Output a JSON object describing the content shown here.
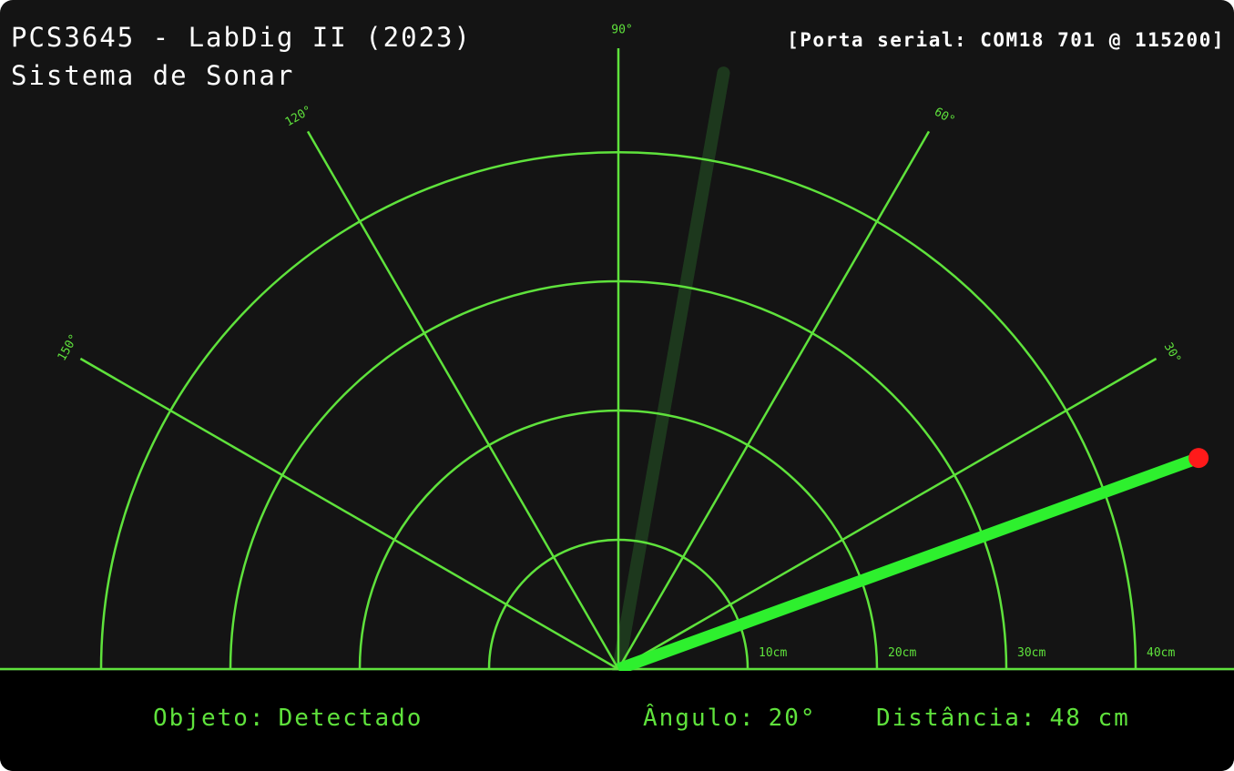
{
  "header": {
    "title": "PCS3645 - LabDig II (2023)",
    "subtitle": "Sistema de Sonar",
    "port_status": "[Porta serial: COM18 701 @ 115200]"
  },
  "radar": {
    "angle_labels": [
      "30°",
      "60°",
      "90°",
      "120°",
      "150°"
    ],
    "range_labels": [
      "10cm",
      "20cm",
      "30cm",
      "40cm"
    ],
    "sweep_angle_deg": 20,
    "fading_trail_angle_deg": 80,
    "max_range_cm": 40,
    "colors": {
      "grid": "#5fe23c",
      "sweep": "#2ef02e",
      "target": "#ff1a1a",
      "trail": "#1f3d1f"
    }
  },
  "status": {
    "object_label": "Objeto:",
    "object_value": "Detectado",
    "angle_label": "Ângulo:",
    "angle_value": "20°",
    "distance_label": "Distância:",
    "distance_value": "48 cm"
  }
}
